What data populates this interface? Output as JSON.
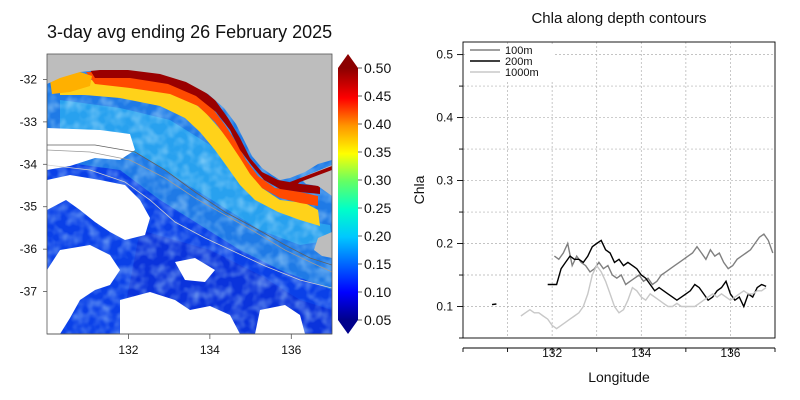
{
  "chart_data": [
    {
      "type": "heatmap",
      "title": "3-day avg ending 26 February 2025",
      "xlabel": "",
      "ylabel": "",
      "xlim": [
        130.0,
        137.0
      ],
      "ylim": [
        -38.0,
        -31.4
      ],
      "x_ticks": [
        132,
        134,
        136
      ],
      "x_tick_labels": [
        "132",
        "134",
        "136"
      ],
      "y_ticks": [
        -32,
        -33,
        -34,
        -35,
        -36,
        -37
      ],
      "y_tick_labels": [
        "-32",
        "-33",
        "-34",
        "-35",
        "-36",
        "-37"
      ],
      "colorbar": {
        "min": 0.05,
        "max": 0.5,
        "ticks": [
          0.5,
          0.45,
          0.4,
          0.35,
          0.3,
          0.25,
          0.2,
          0.15,
          0.1,
          0.05
        ],
        "tick_labels": [
          "0.50",
          "0.45",
          "0.40",
          "0.35",
          "0.30",
          "0.25",
          "0.20",
          "0.15",
          "0.10",
          "0.05"
        ],
        "colors": [
          "#00008b",
          "#0000ff",
          "#0064ff",
          "#00c8ff",
          "#00ffc8",
          "#64ff64",
          "#ffff00",
          "#ff9600",
          "#ff0000",
          "#8b0000"
        ],
        "extend": "both"
      },
      "land_color": "#bdbdbd",
      "missing_color": "#ffffff",
      "contours": [
        "100m",
        "200m",
        "1000m"
      ]
    },
    {
      "type": "line",
      "title": "Chla along depth contours",
      "xlabel": "Longitude",
      "ylabel": "Chla",
      "xlim": [
        130.0,
        137.0
      ],
      "ylim": [
        0.05,
        0.52
      ],
      "grid": true,
      "legend": "top-left",
      "x_ticks": [
        132,
        134,
        136
      ],
      "x_tick_labels": [
        "132",
        "134",
        "136"
      ],
      "y_ticks": [
        0.1,
        0.2,
        0.3,
        0.4,
        0.5
      ],
      "y_tick_labels": [
        "0.1",
        "0.2",
        "0.3",
        "0.4",
        "0.5"
      ],
      "series": [
        {
          "name": "100m",
          "color": "#808080",
          "x": [
            132.05,
            132.15,
            132.25,
            132.35,
            132.45,
            132.55,
            132.65,
            132.75,
            132.85,
            132.95,
            133.05,
            133.15,
            133.25,
            133.35,
            133.45,
            133.55,
            133.65,
            133.75,
            133.85,
            133.95,
            134.05,
            134.15,
            134.25,
            134.35,
            134.45,
            134.55,
            134.65,
            134.75,
            134.85,
            134.95,
            135.05,
            135.15,
            135.25,
            135.35,
            135.45,
            135.55,
            135.65,
            135.75,
            135.85,
            135.95,
            136.05,
            136.15,
            136.25,
            136.35,
            136.45,
            136.55,
            136.65,
            136.75,
            136.85,
            136.95
          ],
          "y": [
            0.18,
            0.175,
            0.185,
            0.2,
            0.165,
            0.18,
            0.17,
            0.165,
            0.155,
            0.16,
            0.17,
            0.16,
            0.165,
            0.15,
            0.145,
            0.15,
            0.135,
            0.14,
            0.145,
            0.15,
            0.14,
            0.145,
            0.135,
            0.14,
            0.15,
            0.155,
            0.16,
            0.165,
            0.17,
            0.175,
            0.18,
            0.185,
            0.195,
            0.185,
            0.175,
            0.19,
            0.18,
            0.185,
            0.17,
            0.16,
            0.165,
            0.175,
            0.18,
            0.185,
            0.19,
            0.2,
            0.21,
            0.215,
            0.205,
            0.185
          ]
        },
        {
          "name": "200m",
          "color": "#000000",
          "x": [
            130.65,
            130.75,
            131.9,
            132.1,
            132.2,
            132.3,
            132.4,
            132.5,
            132.6,
            132.7,
            132.8,
            132.9,
            133.0,
            133.1,
            133.2,
            133.3,
            133.4,
            133.5,
            133.6,
            133.7,
            133.8,
            133.9,
            134.0,
            134.1,
            134.2,
            134.3,
            134.4,
            134.5,
            134.6,
            134.7,
            134.8,
            134.9,
            135.0,
            135.1,
            135.2,
            135.3,
            135.4,
            135.5,
            135.6,
            135.7,
            135.8,
            135.9,
            136.0,
            136.1,
            136.2,
            136.3,
            136.4,
            136.5,
            136.6,
            136.7,
            136.8
          ],
          "y": [
            0.103,
            0.104,
            0.135,
            0.135,
            0.16,
            0.17,
            0.18,
            0.175,
            0.175,
            0.17,
            0.18,
            0.195,
            0.2,
            0.205,
            0.19,
            0.185,
            0.17,
            0.175,
            0.165,
            0.17,
            0.165,
            0.16,
            0.15,
            0.145,
            0.135,
            0.125,
            0.13,
            0.125,
            0.12,
            0.115,
            0.11,
            0.115,
            0.12,
            0.125,
            0.135,
            0.13,
            0.12,
            0.11,
            0.115,
            0.125,
            0.13,
            0.14,
            0.12,
            0.11,
            0.115,
            0.1,
            0.12,
            0.115,
            0.13,
            0.135,
            0.132
          ]
        },
        {
          "name": "1000m",
          "color": "#c8c8c8",
          "x": [
            131.3,
            131.4,
            131.5,
            131.6,
            131.7,
            131.8,
            131.9,
            132.0,
            132.1,
            132.2,
            132.3,
            132.4,
            132.5,
            132.6,
            132.7,
            132.8,
            132.9,
            133.0,
            133.1,
            133.2,
            133.3,
            133.4,
            133.5,
            133.6,
            133.7,
            133.8,
            133.9,
            134.0,
            134.1,
            134.2,
            134.3,
            134.4,
            134.5,
            134.6,
            134.7,
            134.8,
            134.9,
            135.0,
            135.1,
            135.2,
            135.3,
            135.4,
            135.5,
            135.6,
            135.7,
            135.8,
            135.9,
            136.0,
            136.1,
            136.2,
            136.3,
            136.4,
            136.5,
            136.6,
            136.7,
            136.8
          ],
          "y": [
            0.085,
            0.09,
            0.095,
            0.09,
            0.09,
            0.085,
            0.08,
            0.07,
            0.065,
            0.07,
            0.075,
            0.08,
            0.085,
            0.09,
            0.1,
            0.12,
            0.15,
            0.165,
            0.155,
            0.14,
            0.12,
            0.1,
            0.09,
            0.095,
            0.11,
            0.13,
            0.125,
            0.115,
            0.11,
            0.12,
            0.115,
            0.11,
            0.105,
            0.1,
            0.1,
            0.105,
            0.1,
            0.1,
            0.1,
            0.1,
            0.105,
            0.11,
            0.115,
            0.12,
            0.115,
            0.12,
            0.115,
            0.11,
            0.115,
            0.12,
            0.125,
            0.12,
            0.12,
            0.125,
            0.125,
            0.13
          ]
        }
      ]
    }
  ]
}
